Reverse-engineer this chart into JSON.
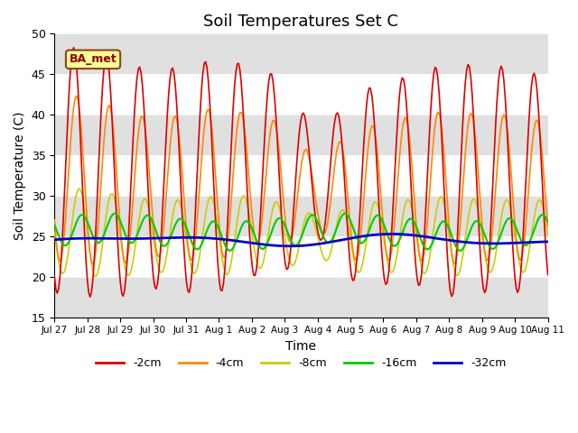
{
  "title": "Soil Temperatures Set C",
  "xlabel": "Time",
  "ylabel": "Soil Temperature (C)",
  "ylim": [
    15,
    50
  ],
  "legend_labels": [
    "-2cm",
    "-4cm",
    "-8cm",
    "-16cm",
    "-32cm"
  ],
  "legend_colors": [
    "#dd0000",
    "#ff8800",
    "#cccc00",
    "#00cc00",
    "#0000cc"
  ],
  "ba_label": "BA_met",
  "xtick_labels": [
    "Jul 27",
    "Jul 28",
    "Jul 29",
    "Jul 30",
    "Jul 31",
    "Aug 1",
    "Aug 2",
    "Aug 3",
    "Aug 4",
    "Aug 5",
    "Aug 6",
    "Aug 7",
    "Aug 8",
    "Aug 9",
    "Aug 10",
    "Aug 11"
  ],
  "band_ranges": [
    [
      15,
      20
    ],
    [
      25,
      30
    ],
    [
      35,
      40
    ],
    [
      45,
      50
    ]
  ],
  "background_color": "#ffffff",
  "n_days": 15
}
